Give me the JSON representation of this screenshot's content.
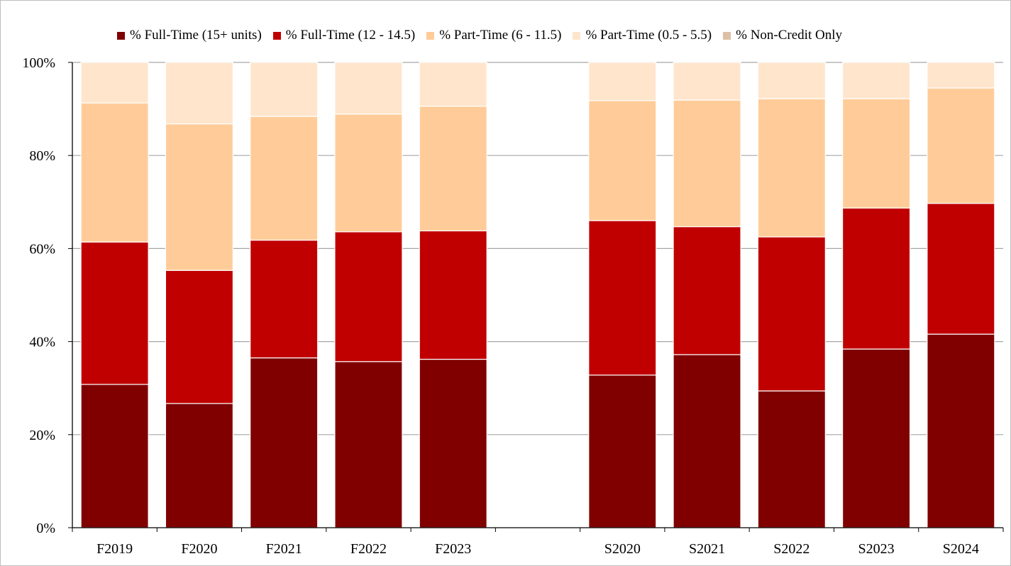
{
  "chart_data": {
    "type": "bar",
    "stacked": true,
    "title": "",
    "xlabel": "",
    "ylabel": "",
    "ylim": [
      0,
      100
    ],
    "y_ticks": [
      "0%",
      "20%",
      "40%",
      "60%",
      "80%",
      "100%"
    ],
    "grid": true,
    "legend_position": "top",
    "categories": [
      "F2019",
      "F2020",
      "F2021",
      "F2022",
      "F2023",
      "",
      "S2020",
      "S2021",
      "S2022",
      "S2023",
      "S2024"
    ],
    "series": [
      {
        "name": "% Full-Time (15+ units)",
        "color": "#800000",
        "values": [
          30.8,
          26.7,
          36.5,
          35.7,
          36.2,
          null,
          32.8,
          37.2,
          29.4,
          38.4,
          41.6
        ]
      },
      {
        "name": "% Full-Time (12 - 14.5)",
        "color": "#c00000",
        "values": [
          30.6,
          28.6,
          25.3,
          27.9,
          27.6,
          null,
          33.2,
          27.5,
          33.1,
          30.3,
          28.1
        ]
      },
      {
        "name": "% Part-Time (6 - 11.5)",
        "color": "#ffcc99",
        "values": [
          29.9,
          31.5,
          26.6,
          25.3,
          26.8,
          null,
          25.8,
          27.2,
          29.7,
          23.5,
          24.8
        ]
      },
      {
        "name": "% Part-Time (0.5 - 5.5)",
        "color": "#ffe5cc",
        "values": [
          8.7,
          13.2,
          11.6,
          11.1,
          9.4,
          null,
          8.2,
          8.1,
          7.8,
          7.8,
          5.5
        ]
      },
      {
        "name": "% Non-Credit Only",
        "color": "#dcbfa6",
        "values": [
          0,
          0,
          0,
          0,
          0,
          null,
          0,
          0,
          0,
          0,
          0
        ]
      }
    ]
  }
}
